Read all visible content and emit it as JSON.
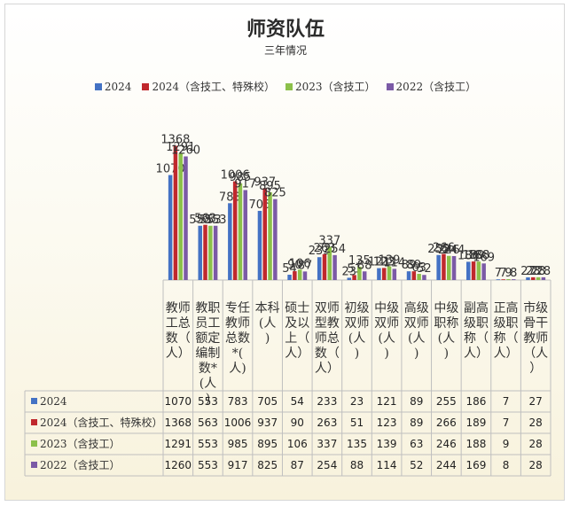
{
  "chart_data": {
    "type": "bar",
    "title": "师资队伍",
    "subtitle": "三年情况",
    "categories": [
      "教师工总数（人）",
      "教职员工额定编制数*(人)",
      "专任教师总数*(人)",
      "本科(人)",
      "硕士及以上（人）",
      "双师型教师总数（人）",
      "初级双师(人)",
      "中级双师(人)",
      "高级双师(人)",
      "中级职称(人)",
      "副高级职称（人）",
      "正高级职称（人）",
      "市级骨干教师（人）"
    ],
    "series": [
      {
        "name": "2024",
        "color": "#4472c4",
        "values": [
          1070,
          553,
          783,
          705,
          54,
          233,
          23,
          121,
          89,
          255,
          186,
          7,
          27
        ]
      },
      {
        "name": "2024（含技工、特殊校）",
        "color": "#c0282d",
        "values": [
          1368,
          563,
          1006,
          937,
          90,
          263,
          51,
          123,
          89,
          266,
          189,
          7,
          28
        ]
      },
      {
        "name": "2023（含技工）",
        "color": "#8cc04a",
        "values": [
          1291,
          553,
          985,
          895,
          106,
          337,
          135,
          139,
          63,
          246,
          188,
          9,
          28
        ]
      },
      {
        "name": "2022（含技工）",
        "color": "#7b5aa6",
        "values": [
          1260,
          553,
          917,
          825,
          87,
          254,
          88,
          114,
          52,
          244,
          169,
          8,
          28
        ]
      }
    ],
    "ylim": [
      0,
      1400
    ],
    "grid": false,
    "legend": "top",
    "data_table": true
  }
}
